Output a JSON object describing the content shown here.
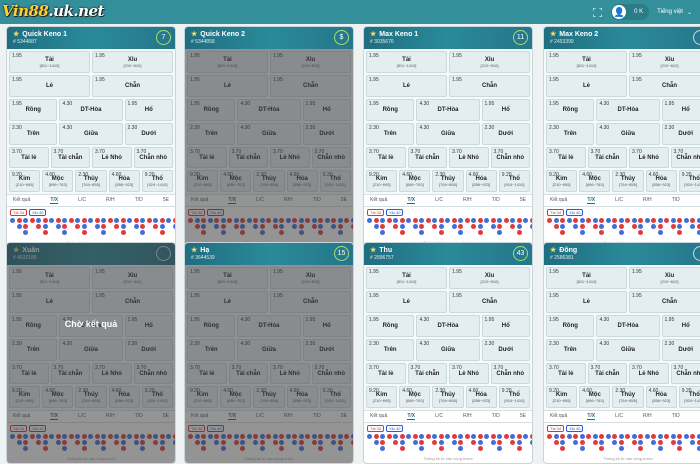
{
  "topbar": {
    "balance": "0 K",
    "language": "Tiếng việt"
  },
  "common": {
    "tai": "Tài",
    "tai_range": "[811~1410]",
    "xiu": "Xỉu",
    "xiu_range": "[210~810]",
    "le": "Lẻ",
    "chan": "Chẵn",
    "rong": "Rồng",
    "dthoa": "DT-Hòa",
    "ho": "Hổ",
    "tren": "Trên",
    "giua": "Giữa",
    "duoi": "Dưới",
    "taile": "Tài lẻ",
    "taichan": "Tài chẵn",
    "xiule": "Lẻ Nhỏ",
    "xiuchan": "Chẵn nhỏ",
    "kim": "Kim",
    "kim_r": "[210~695]",
    "moc": "Mộc",
    "moc_r": "[696~763]",
    "thuy": "Thủy",
    "thuy_r": "[764~855]",
    "hoa": "Hỏa",
    "hoa_r": "[856~923]",
    "tho": "Thổ",
    "tho_r": "[924~1410]",
    "o195": "1.95",
    "o430": "4.30",
    "o230": "2.30",
    "o370": "3.70",
    "o920": "9.20",
    "o460": "4.60",
    "tabs": [
      "Kết quả",
      "T/X",
      "L/C",
      "R/H",
      "T/D",
      "5E"
    ],
    "tag_t": "Tài 34",
    "tag_x": "Xỉu 40",
    "footer": "Thống kê từ các vòng trước",
    "waiting": "Chờ kết quả"
  },
  "logo": {
    "main": "Vin88",
    "suffix": ".uk.net"
  },
  "panels": [
    {
      "name": "Quick Keno 1",
      "id": "# 5344887",
      "count": "7"
    },
    {
      "name": "Quick Keno 2",
      "id": "# 5344858",
      "count": "$"
    },
    {
      "name": "Max Keno 1",
      "id": "# 3035676",
      "count": "11"
    },
    {
      "name": "Max Keno 2",
      "id": "# 2453399",
      "count": ""
    },
    {
      "name": "Xuân",
      "id": "# 4532189",
      "count": ""
    },
    {
      "name": "Hạ",
      "id": "# 3644539",
      "count": "15"
    },
    {
      "name": "Thu",
      "id": "# 2896757",
      "count": "43"
    },
    {
      "name": "Đông",
      "id": "# 2586381",
      "count": ""
    }
  ],
  "colors": {
    "accent": "#33909b",
    "tai": "#e23b3b",
    "xiu": "#3f6fd8"
  }
}
